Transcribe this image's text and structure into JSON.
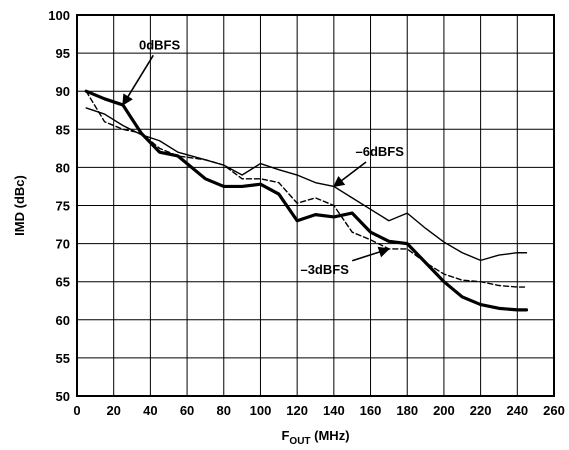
{
  "chart_data": {
    "type": "line",
    "title": "",
    "xlabel": {
      "main": "F",
      "sub": "OUT",
      "unit": " (MHz)"
    },
    "ylabel": "IMD (dBc)",
    "xlim": [
      0,
      260
    ],
    "ylim": [
      50,
      100
    ],
    "xticks": [
      0,
      20,
      40,
      60,
      80,
      100,
      120,
      140,
      160,
      180,
      200,
      220,
      240,
      260
    ],
    "yticks": [
      50,
      55,
      60,
      65,
      70,
      75,
      80,
      85,
      90,
      95,
      100
    ],
    "grid": true,
    "legend": "none",
    "series": [
      {
        "name": "0dBFS",
        "style": "thick-solid",
        "color": "#000000",
        "x": [
          5,
          15,
          25,
          35,
          45,
          55,
          70,
          80,
          90,
          100,
          110,
          120,
          130,
          140,
          150,
          160,
          170,
          180,
          190,
          200,
          210,
          220,
          230,
          240,
          245
        ],
        "y": [
          90,
          89,
          88.2,
          84.5,
          82,
          81.5,
          78.5,
          77.5,
          77.5,
          77.8,
          76.5,
          73,
          73.8,
          73.5,
          74,
          71.5,
          70.3,
          70,
          67.5,
          65,
          63,
          62,
          61.5,
          61.3,
          61.3
        ]
      },
      {
        "name": "–3dBFS",
        "style": "dashed",
        "color": "#000000",
        "x": [
          5,
          15,
          25,
          35,
          45,
          55,
          70,
          80,
          90,
          100,
          110,
          120,
          130,
          140,
          150,
          160,
          170,
          180,
          190,
          200,
          210,
          220,
          230,
          240,
          245
        ],
        "y": [
          90,
          86,
          85,
          84.5,
          82.5,
          81.5,
          81,
          80.3,
          78.5,
          78.5,
          78,
          75.3,
          76,
          75,
          71.5,
          70.5,
          69.3,
          69.3,
          67.5,
          66,
          65.2,
          65,
          64.5,
          64.3,
          64.3
        ]
      },
      {
        "name": "–6dBFS",
        "style": "thin-solid",
        "color": "#000000",
        "x": [
          5,
          15,
          25,
          35,
          45,
          55,
          70,
          80,
          90,
          100,
          110,
          120,
          130,
          140,
          150,
          160,
          170,
          180,
          190,
          200,
          210,
          220,
          230,
          240,
          245
        ],
        "y": [
          87.8,
          87,
          85.5,
          84.3,
          83.5,
          82,
          81,
          80.3,
          79,
          80.5,
          79.7,
          79,
          78,
          77.5,
          76,
          74.5,
          73,
          74,
          72,
          70.2,
          68.8,
          67.8,
          68.5,
          68.8,
          68.8
        ]
      }
    ],
    "annotations": [
      {
        "text": "0dBFS",
        "series": "0dBFS",
        "label_at": [
          45,
          95.5
        ],
        "arrow_to": [
          25,
          88.2
        ]
      },
      {
        "text": "–6dBFS",
        "series": "–6dBFS",
        "label_at": [
          165,
          81.5
        ],
        "arrow_to": [
          140,
          77.5
        ]
      },
      {
        "text": "–3dBFS",
        "series": "–3dBFS",
        "label_at": [
          135,
          66
        ],
        "arrow_to": [
          170,
          69.3
        ]
      }
    ]
  }
}
